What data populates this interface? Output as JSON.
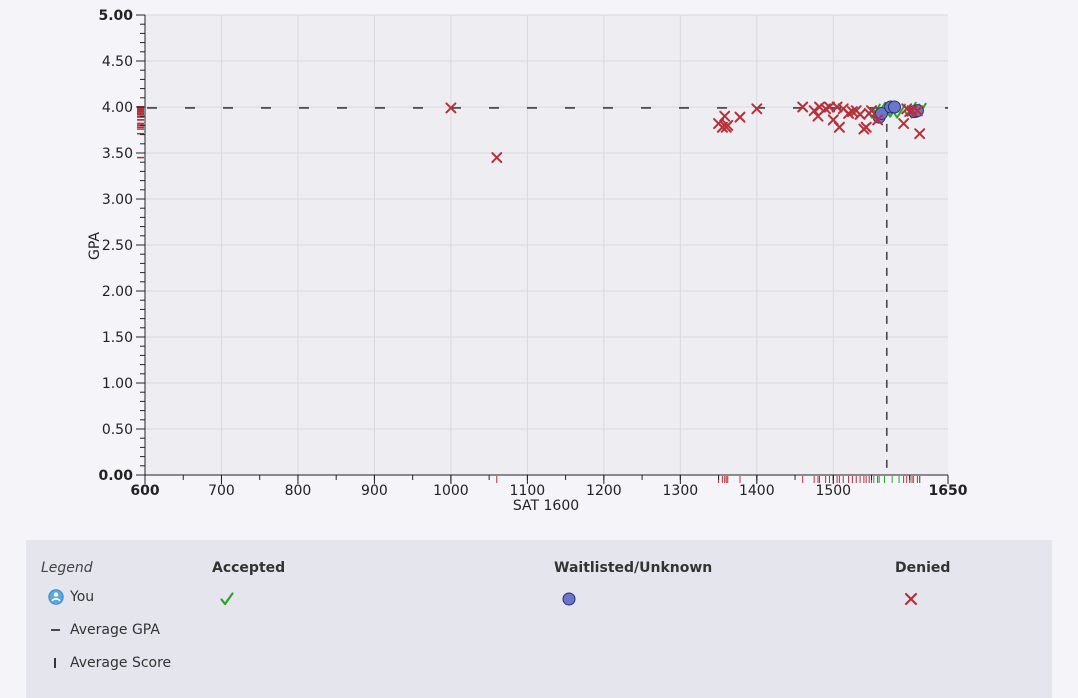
{
  "chart_data": {
    "type": "scatter",
    "xlabel": "SAT 1600",
    "ylabel": "GPA",
    "xlim": [
      600,
      1650
    ],
    "ylim": [
      0,
      5
    ],
    "x_ticks": [
      "600",
      "700",
      "800",
      "900",
      "1000",
      "1100",
      "1200",
      "1300",
      "1400",
      "1500",
      "1650"
    ],
    "x_tick_values": [
      600,
      700,
      800,
      900,
      1000,
      1100,
      1200,
      1300,
      1400,
      1500,
      1650
    ],
    "y_ticks": [
      "0.00",
      "0.50",
      "1.00",
      "1.50",
      "2.00",
      "2.50",
      "3.00",
      "3.50",
      "4.00",
      "4.50",
      "5.00"
    ],
    "y_tick_values": [
      0,
      0.5,
      1,
      1.5,
      2,
      2.5,
      3,
      3.5,
      4,
      4.5,
      5
    ],
    "grid": true,
    "average_gpa": 3.99,
    "average_score": 1570,
    "series": [
      {
        "name": "Accepted",
        "marker": "check",
        "color": "#2ca02c",
        "points": [
          [
            1553,
            3.95
          ],
          [
            1560,
            3.97
          ],
          [
            1567,
            3.95
          ],
          [
            1577,
            3.96
          ],
          [
            1586,
            3.95
          ],
          [
            1600,
            3.97
          ],
          [
            1605,
            3.95
          ],
          [
            1613,
            3.96
          ]
        ]
      },
      {
        "name": "Waitlisted/Unknown",
        "marker": "circle",
        "color": "#6c75cc",
        "points": [
          [
            1560,
            3.89
          ],
          [
            1563,
            3.93
          ],
          [
            1575,
            4.0
          ],
          [
            1580,
            4.0
          ],
          [
            1606,
            3.95
          ],
          [
            1610,
            3.96
          ]
        ]
      },
      {
        "name": "Denied",
        "marker": "x",
        "color": "#b5303a",
        "points": [
          [
            1000,
            3.99
          ],
          [
            1060,
            3.45
          ],
          [
            1350,
            3.82
          ],
          [
            1355,
            3.78
          ],
          [
            1358,
            3.9
          ],
          [
            1360,
            3.78
          ],
          [
            1362,
            3.8
          ],
          [
            1378,
            3.89
          ],
          [
            1400,
            3.98
          ],
          [
            1460,
            4.0
          ],
          [
            1475,
            3.96
          ],
          [
            1480,
            3.9
          ],
          [
            1482,
            4.0
          ],
          [
            1490,
            3.98
          ],
          [
            1495,
            4.0
          ],
          [
            1500,
            3.86
          ],
          [
            1505,
            4.0
          ],
          [
            1508,
            3.78
          ],
          [
            1513,
            3.98
          ],
          [
            1520,
            3.93
          ],
          [
            1525,
            3.95
          ],
          [
            1530,
            3.96
          ],
          [
            1535,
            3.92
          ],
          [
            1540,
            3.76
          ],
          [
            1543,
            3.78
          ],
          [
            1547,
            3.93
          ],
          [
            1550,
            3.96
          ],
          [
            1558,
            3.86
          ],
          [
            1592,
            3.82
          ],
          [
            1596,
            3.98
          ],
          [
            1600,
            3.95
          ],
          [
            1603,
            3.96
          ],
          [
            1610,
            3.96
          ],
          [
            1613,
            3.71
          ]
        ]
      }
    ]
  },
  "legend": {
    "title": "Legend",
    "you_label": "You",
    "avg_gpa_label": "Average GPA",
    "avg_score_label": "Average Score",
    "accepted_label": "Accepted",
    "waitlisted_label": "Waitlisted/Unknown",
    "denied_label": "Denied",
    "you_icon": "person-circle-icon",
    "accepted_icon": "check-icon",
    "waitlisted_icon": "circle-icon",
    "denied_icon": "x-icon"
  }
}
